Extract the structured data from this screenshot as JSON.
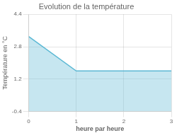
{
  "chart_data": {
    "type": "area",
    "title": "Evolution de la température",
    "xlabel": "heure par heure",
    "ylabel": "Température en °C",
    "x": [
      0,
      1,
      2,
      3
    ],
    "values": [
      3.3,
      1.6,
      1.6,
      1.6
    ],
    "color": "#5bb8d4",
    "xlim": [
      0,
      3
    ],
    "ylim": [
      -0.4,
      4.4
    ],
    "xticks": [
      0,
      1,
      2,
      3
    ],
    "yticks": [
      -0.4,
      1.2,
      2.8,
      4.4
    ],
    "grid": true
  }
}
